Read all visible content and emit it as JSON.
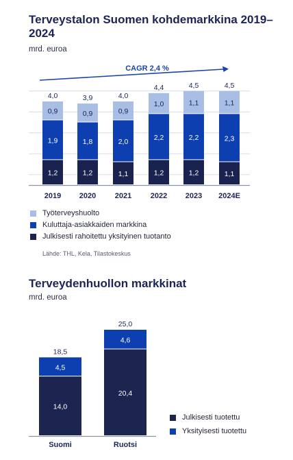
{
  "colors": {
    "tyoterveys": "#a9bee4",
    "kuluttaja": "#0d3fb0",
    "julkisesti_rahoitettu": "#1a2350",
    "julkisesti_tuotettu": "#1c2450",
    "yksityisesti_tuotettu": "#0d3fb0",
    "grid": "#d7dde8",
    "axis": "#8a92a8",
    "arrow": "#1a45a8"
  },
  "chart_data": [
    {
      "type": "bar",
      "stacked": true,
      "title": "Terveystalon Suomen kohdemarkkina 2019–2024",
      "subtitle": "mrd. euroa",
      "categories": [
        "2019",
        "2020",
        "2021",
        "2022",
        "2023",
        "2024E"
      ],
      "series": [
        {
          "name": "Julkisesti rahoitettu yksityinen tuotanto",
          "values": [
            1.2,
            1.2,
            1.1,
            1.2,
            1.2,
            1.1
          ],
          "labels": [
            "1,2",
            "1,2",
            "1,1",
            "1,2",
            "1,2",
            "1,1"
          ]
        },
        {
          "name": "Kuluttaja-asiakkaiden markkina",
          "values": [
            1.9,
            1.8,
            2.0,
            2.2,
            2.2,
            2.3
          ],
          "labels": [
            "1,9",
            "1,8",
            "2,0",
            "2,2",
            "2,2",
            "2,3"
          ]
        },
        {
          "name": "Työterveyshuolto",
          "values": [
            0.9,
            0.9,
            0.9,
            1.0,
            1.1,
            1.1
          ],
          "labels": [
            "0,9",
            "0,9",
            "0,9",
            "1,0",
            "1,1",
            "1,1"
          ]
        }
      ],
      "totals": [
        "4,0",
        "3,9",
        "4,0",
        "4,4",
        "4,5",
        "4,5"
      ],
      "annotation": "CAGR 2,4 %",
      "ylim": [
        0,
        4.5
      ],
      "grid": true,
      "legend_position": "bottom",
      "legend_order": [
        "Työterveyshuolto",
        "Kuluttaja-asiakkaiden markkina",
        "Julkisesti rahoitettu yksityinen tuotanto"
      ],
      "source": "Lähde: THL, Kela, Tilastokeskus"
    },
    {
      "type": "bar",
      "stacked": true,
      "title": "Terveydenhuollon markkinat",
      "subtitle": "mrd. euroa",
      "categories": [
        "Suomi",
        "Ruotsi"
      ],
      "series": [
        {
          "name": "Julkisesti tuotettu",
          "values": [
            14.0,
            20.4
          ],
          "labels": [
            "14,0",
            "20,4"
          ]
        },
        {
          "name": "Yksityisesti tuotettu",
          "values": [
            4.5,
            4.6
          ],
          "labels": [
            "4,5",
            "4,6"
          ]
        }
      ],
      "totals": [
        "18,5",
        "25,0"
      ],
      "ylim": [
        0,
        25
      ],
      "grid": false,
      "legend_position": "right"
    }
  ]
}
